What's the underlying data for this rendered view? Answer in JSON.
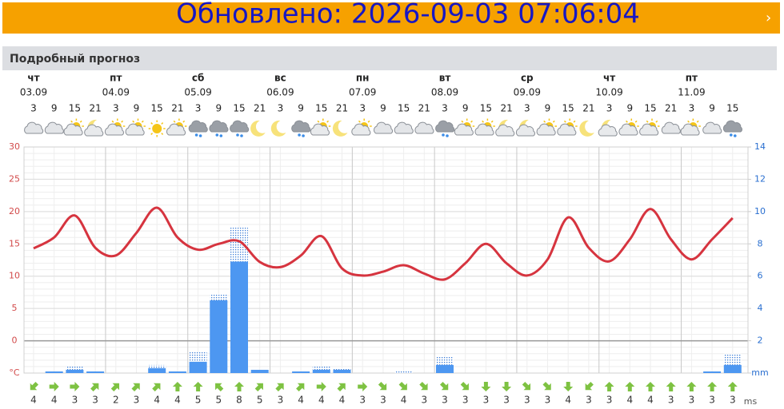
{
  "banner": "Обновлено: 2026-09-03 07:06:04",
  "section_title": "Подробный прогноз",
  "chart_data": {
    "type": "line",
    "days": [
      {
        "name": "чт",
        "date": "03.09"
      },
      {
        "name": "пт",
        "date": "04.09"
      },
      {
        "name": "сб",
        "date": "05.09"
      },
      {
        "name": "вс",
        "date": "06.09"
      },
      {
        "name": "пн",
        "date": "07.09"
      },
      {
        "name": "вт",
        "date": "08.09"
      },
      {
        "name": "ср",
        "date": "09.09"
      },
      {
        "name": "чт",
        "date": "10.09"
      },
      {
        "name": "пт",
        "date": "11.09"
      }
    ],
    "categories": [
      "3",
      "9",
      "15",
      "21",
      "3",
      "9",
      "15",
      "21",
      "3",
      "9",
      "15",
      "21",
      "3",
      "9",
      "15",
      "21",
      "3",
      "9",
      "15",
      "21",
      "3",
      "9",
      "15",
      "21",
      "3",
      "9",
      "15",
      "21",
      "3",
      "9",
      "15",
      "21",
      "3",
      "9",
      "15"
    ],
    "ylim": [
      -5,
      30
    ],
    "yticks": [
      {
        "value": -5,
        "label": "°C"
      },
      0,
      5,
      10,
      15,
      20,
      25,
      30
    ],
    "y2lim": [
      0,
      14
    ],
    "y2ticks": [
      {
        "value": 0,
        "label": "mm"
      },
      2,
      4,
      6,
      8,
      10,
      12,
      14
    ],
    "grid": true,
    "series": [
      {
        "color": "#d6343f",
        "values": [
          14.3,
          16,
          19.4,
          14.4,
          13.2,
          16.7,
          20.6,
          16,
          14.1,
          15,
          15.4,
          12.2,
          11.4,
          13.2,
          16.2,
          11.2,
          10.1,
          10.7,
          11.7,
          10.4,
          9.5,
          12,
          15,
          12,
          10.1,
          12.6,
          19.1,
          14.4,
          12.3,
          15.7,
          20.4,
          15.7,
          12.6,
          15.7,
          19
        ]
      },
      {
        "type": "bar",
        "axis": "y2",
        "color": "#4d97f1",
        "values": [
          0,
          0.1,
          0.2,
          0.1,
          0,
          0,
          0.3,
          0.1,
          0.7,
          4.5,
          6.9,
          0.2,
          0,
          0.1,
          0.2,
          0.2,
          0,
          0,
          0,
          0,
          0.5,
          0,
          0,
          0,
          0,
          0,
          0,
          0,
          0,
          0,
          0,
          0,
          0,
          0.1,
          0.5
        ],
        "max_values": [
          0,
          0.1,
          0.4,
          0.1,
          0,
          0,
          0.5,
          0.1,
          1.3,
          4.9,
          9.0,
          0.2,
          0,
          0.1,
          0.4,
          0.3,
          0,
          0,
          0.1,
          0,
          1.0,
          0,
          0,
          0,
          0,
          0,
          0,
          0,
          0,
          0,
          0,
          0,
          0,
          0.1,
          1.2
        ]
      }
    ],
    "wind": {
      "unit": "ms",
      "color": "#7ec242",
      "speeds": [
        4,
        4,
        3,
        3,
        2,
        3,
        4,
        4,
        5,
        5,
        8,
        5,
        3,
        4,
        4,
        4,
        3,
        3,
        4,
        3,
        3,
        3,
        3,
        3,
        3,
        3,
        4,
        3,
        3,
        4,
        4,
        3,
        3,
        3,
        3
      ],
      "angles": [
        225,
        90,
        90,
        45,
        45,
        45,
        45,
        0,
        0,
        315,
        0,
        45,
        45,
        45,
        90,
        45,
        90,
        135,
        135,
        135,
        135,
        135,
        180,
        180,
        135,
        135,
        180,
        225,
        0,
        0,
        0,
        0,
        0,
        0,
        0
      ]
    }
  }
}
